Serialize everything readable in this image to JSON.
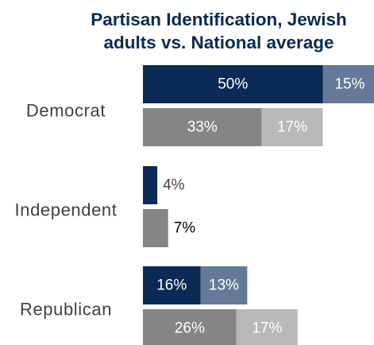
{
  "chart_data": {
    "type": "bar",
    "orientation": "horizontal",
    "stacked": true,
    "title": [
      "Partisan Identification, Jewish",
      "adults vs. National average"
    ],
    "categories": [
      "Democrat",
      "Independent",
      "Republican"
    ],
    "series": [
      {
        "segments": [
          {
            "values": [
              50,
              4,
              16
            ],
            "labels": [
              "50%",
              "4%",
              "16%"
            ],
            "color": "#0b2a55"
          },
          {
            "values": [
              15,
              null,
              13
            ],
            "labels": [
              "15%",
              "",
              "13%"
            ],
            "color": "#647a98"
          }
        ]
      },
      {
        "segments": [
          {
            "values": [
              33,
              7,
              26
            ],
            "labels": [
              "33%",
              "7%",
              "26%"
            ],
            "color": "#858585"
          },
          {
            "values": [
              17,
              null,
              17
            ],
            "labels": [
              "17%",
              "",
              "17%"
            ],
            "color": "#b9b9b9"
          }
        ]
      }
    ],
    "legend": "none",
    "grid": false
  }
}
